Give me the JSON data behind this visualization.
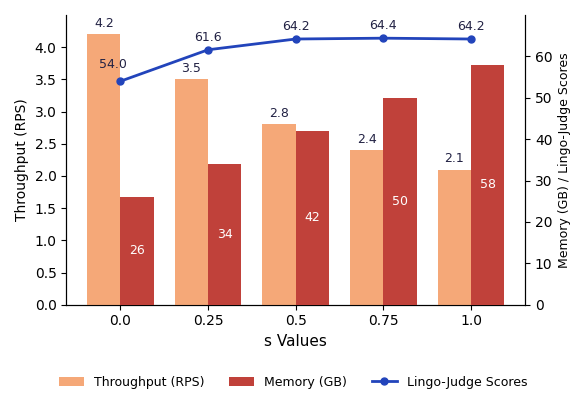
{
  "s_values": [
    0,
    1,
    2,
    3,
    4
  ],
  "s_labels": [
    "0.0",
    "0.25",
    "0.5",
    "0.75",
    "1.0"
  ],
  "throughput": [
    4.2,
    3.5,
    2.8,
    2.4,
    2.1
  ],
  "memory": [
    26,
    34,
    42,
    50,
    58
  ],
  "lingo_judge": [
    54.0,
    61.6,
    64.2,
    64.4,
    64.2
  ],
  "throughput_color": "#F5A878",
  "memory_color": "#C0413A",
  "lingo_color": "#2244BB",
  "bar_width": 0.38,
  "xlabel": "s Values",
  "ylabel_left": "Throughput (RPS)",
  "ylabel_right": "Memory (GB) / Lingo-Judge Scores",
  "ylim_left": [
    0,
    4.5
  ],
  "ylim_right": [
    0,
    70
  ],
  "yticks_left": [
    0,
    0.5,
    1.0,
    1.5,
    2.0,
    2.5,
    3.0,
    3.5,
    4.0
  ],
  "yticks_right": [
    0,
    10,
    20,
    30,
    40,
    50,
    60
  ],
  "legend_labels": [
    "Throughput (RPS)",
    "Memory (GB)",
    "Lingo-Judge Scores"
  ],
  "figsize": [
    5.86,
    4.0
  ],
  "dpi": 100
}
